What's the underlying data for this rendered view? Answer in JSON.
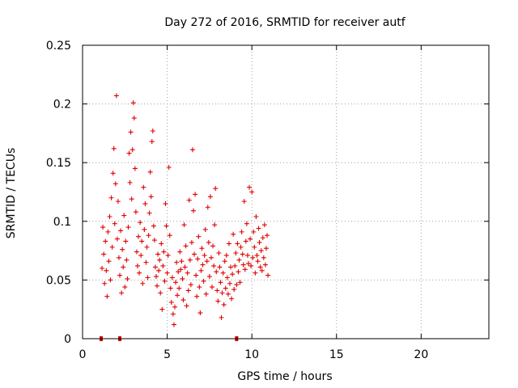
{
  "chart_data": {
    "type": "scatter",
    "title": "Day 272 of 2016, SRMTID for receiver autf",
    "xlabel": "GPS time / hours",
    "ylabel": "SRMTID / TECUs",
    "xlim": [
      0,
      24
    ],
    "ylim": [
      0,
      0.25
    ],
    "xticks": [
      0,
      5,
      10,
      15,
      20
    ],
    "xtick_labels": [
      "0",
      "5",
      "10",
      "15",
      "20"
    ],
    "yticks": [
      0,
      0.05,
      0.1,
      0.15,
      0.2,
      0.25
    ],
    "ytick_labels": [
      "0",
      "0.05",
      "0.1",
      "0.15",
      "0.2",
      "0.25"
    ],
    "grid": true,
    "marker": "+",
    "color": "#e00000",
    "axis_markers": {
      "x": [
        1.1,
        2.2,
        9.1
      ],
      "y": 0,
      "color": "#cc0000"
    },
    "series": [
      {
        "values": [
          [
            1.15,
            0.06
          ],
          [
            1.2,
            0.095
          ],
          [
            1.25,
            0.072
          ],
          [
            1.3,
            0.047
          ],
          [
            1.35,
            0.083
          ],
          [
            1.4,
            0.058
          ],
          [
            1.45,
            0.036
          ],
          [
            1.5,
            0.091
          ],
          [
            1.55,
            0.066
          ],
          [
            1.6,
            0.104
          ],
          [
            1.65,
            0.05
          ],
          [
            1.7,
            0.12
          ],
          [
            1.75,
            0.078
          ],
          [
            1.8,
            0.141
          ],
          [
            1.85,
            0.162
          ],
          [
            1.9,
            0.098
          ],
          [
            1.95,
            0.132
          ],
          [
            2.0,
            0.207
          ],
          [
            2.05,
            0.085
          ],
          [
            2.1,
            0.117
          ],
          [
            2.15,
            0.069
          ],
          [
            2.2,
            0.054
          ],
          [
            2.25,
            0.092
          ],
          [
            2.3,
            0.039
          ],
          [
            2.35,
            0.076
          ],
          [
            2.4,
            0.061
          ],
          [
            2.45,
            0.105
          ],
          [
            2.5,
            0.044
          ],
          [
            2.55,
            0.083
          ],
          [
            2.6,
            0.067
          ],
          [
            2.65,
            0.051
          ],
          [
            2.7,
            0.095
          ],
          [
            2.75,
            0.158
          ],
          [
            2.8,
            0.133
          ],
          [
            2.85,
            0.176
          ],
          [
            2.9,
            0.119
          ],
          [
            2.95,
            0.161
          ],
          [
            3.0,
            0.201
          ],
          [
            3.05,
            0.188
          ],
          [
            3.1,
            0.145
          ],
          [
            3.15,
            0.108
          ],
          [
            3.2,
            0.074
          ],
          [
            3.25,
            0.062
          ],
          [
            3.3,
            0.087
          ],
          [
            3.35,
            0.056
          ],
          [
            3.4,
            0.099
          ],
          [
            3.45,
            0.071
          ],
          [
            3.5,
            0.083
          ],
          [
            3.55,
            0.047
          ],
          [
            3.6,
            0.129
          ],
          [
            3.65,
            0.093
          ],
          [
            3.7,
            0.115
          ],
          [
            3.75,
            0.065
          ],
          [
            3.8,
            0.078
          ],
          [
            3.85,
            0.052
          ],
          [
            3.9,
            0.088
          ],
          [
            3.95,
            0.107
          ],
          [
            4.0,
            0.142
          ],
          [
            4.05,
            0.121
          ],
          [
            4.1,
            0.168
          ],
          [
            4.15,
            0.177
          ],
          [
            4.2,
            0.096
          ],
          [
            4.25,
            0.084
          ],
          [
            4.3,
            0.061
          ],
          [
            4.35,
            0.053
          ],
          [
            4.4,
            0.045
          ],
          [
            4.45,
            0.072
          ],
          [
            4.5,
            0.058
          ],
          [
            4.55,
            0.067
          ],
          [
            4.6,
            0.039
          ],
          [
            4.65,
            0.081
          ],
          [
            4.7,
            0.025
          ],
          [
            4.75,
            0.062
          ],
          [
            4.8,
            0.074
          ],
          [
            4.85,
            0.049
          ],
          [
            4.9,
            0.115
          ],
          [
            4.95,
            0.096
          ],
          [
            5.0,
            0.056
          ],
          [
            5.05,
            0.071
          ],
          [
            5.1,
            0.146
          ],
          [
            5.15,
            0.088
          ],
          [
            5.2,
            0.043
          ],
          [
            5.25,
            0.031
          ],
          [
            5.3,
            0.052
          ],
          [
            5.35,
            0.021
          ],
          [
            5.4,
            0.012
          ],
          [
            5.45,
            0.027
          ],
          [
            5.5,
            0.048
          ],
          [
            5.55,
            0.065
          ],
          [
            5.6,
            0.037
          ],
          [
            5.65,
            0.057
          ],
          [
            5.7,
            0.043
          ],
          [
            5.75,
            0.074
          ],
          [
            5.8,
            0.059
          ],
          [
            5.85,
            0.066
          ],
          [
            5.9,
            0.051
          ],
          [
            5.95,
            0.033
          ],
          [
            6.0,
            0.097
          ],
          [
            6.05,
            0.061
          ],
          [
            6.1,
            0.079
          ],
          [
            6.15,
            0.028
          ],
          [
            6.2,
            0.056
          ],
          [
            6.25,
            0.041
          ],
          [
            6.3,
            0.118
          ],
          [
            6.35,
            0.067
          ],
          [
            6.4,
            0.046
          ],
          [
            6.45,
            0.082
          ],
          [
            6.5,
            0.161
          ],
          [
            6.55,
            0.109
          ],
          [
            6.6,
            0.072
          ],
          [
            6.65,
            0.123
          ],
          [
            6.7,
            0.054
          ],
          [
            6.75,
            0.036
          ],
          [
            6.8,
            0.068
          ],
          [
            6.85,
            0.087
          ],
          [
            6.9,
            0.044
          ],
          [
            6.95,
            0.022
          ],
          [
            7.0,
            0.058
          ],
          [
            7.05,
            0.077
          ],
          [
            7.1,
            0.063
          ],
          [
            7.15,
            0.049
          ],
          [
            7.2,
            0.071
          ],
          [
            7.25,
            0.093
          ],
          [
            7.3,
            0.038
          ],
          [
            7.35,
            0.066
          ],
          [
            7.4,
            0.112
          ],
          [
            7.45,
            0.082
          ],
          [
            7.5,
            0.053
          ],
          [
            7.55,
            0.121
          ],
          [
            7.6,
            0.069
          ],
          [
            7.65,
            0.044
          ],
          [
            7.7,
            0.079
          ],
          [
            7.75,
            0.062
          ],
          [
            7.8,
            0.097
          ],
          [
            7.85,
            0.128
          ],
          [
            7.9,
            0.057
          ],
          [
            7.95,
            0.041
          ],
          [
            8.0,
            0.032
          ],
          [
            8.05,
            0.073
          ],
          [
            8.1,
            0.061
          ],
          [
            8.15,
            0.048
          ],
          [
            8.2,
            0.018
          ],
          [
            8.25,
            0.039
          ],
          [
            8.3,
            0.056
          ],
          [
            8.35,
            0.029
          ],
          [
            8.4,
            0.066
          ],
          [
            8.45,
            0.043
          ],
          [
            8.5,
            0.071
          ],
          [
            8.55,
            0.052
          ],
          [
            8.6,
            0.038
          ],
          [
            8.65,
            0.081
          ],
          [
            8.7,
            0.047
          ],
          [
            8.75,
            0.061
          ],
          [
            8.8,
            0.034
          ],
          [
            8.85,
            0.055
          ],
          [
            8.9,
            0.089
          ],
          [
            8.95,
            0.042
          ],
          [
            9.0,
            0.062
          ],
          [
            9.05,
            0.073
          ],
          [
            9.1,
            0.046
          ],
          [
            9.15,
            0.081
          ],
          [
            9.2,
            0.057
          ],
          [
            9.25,
            0.067
          ],
          [
            9.3,
            0.048
          ],
          [
            9.35,
            0.078
          ],
          [
            9.4,
            0.091
          ],
          [
            9.45,
            0.072
          ],
          [
            9.5,
            0.063
          ],
          [
            9.55,
            0.117
          ],
          [
            9.6,
            0.059
          ],
          [
            9.65,
            0.083
          ],
          [
            9.7,
            0.098
          ],
          [
            9.75,
            0.071
          ],
          [
            9.8,
            0.064
          ],
          [
            9.85,
            0.129
          ],
          [
            9.9,
            0.085
          ],
          [
            9.95,
            0.062
          ],
          [
            10.0,
            0.125
          ],
          [
            10.05,
            0.069
          ],
          [
            10.1,
            0.091
          ],
          [
            10.15,
            0.078
          ],
          [
            10.2,
            0.056
          ],
          [
            10.25,
            0.104
          ],
          [
            10.3,
            0.071
          ],
          [
            10.35,
            0.066
          ],
          [
            10.4,
            0.094
          ],
          [
            10.45,
            0.082
          ],
          [
            10.5,
            0.061
          ],
          [
            10.55,
            0.075
          ],
          [
            10.6,
            0.058
          ],
          [
            10.65,
            0.086
          ],
          [
            10.7,
            0.069
          ],
          [
            10.75,
            0.097
          ],
          [
            10.8,
            0.063
          ],
          [
            10.85,
            0.077
          ],
          [
            10.9,
            0.088
          ],
          [
            10.95,
            0.054
          ]
        ]
      }
    ]
  }
}
